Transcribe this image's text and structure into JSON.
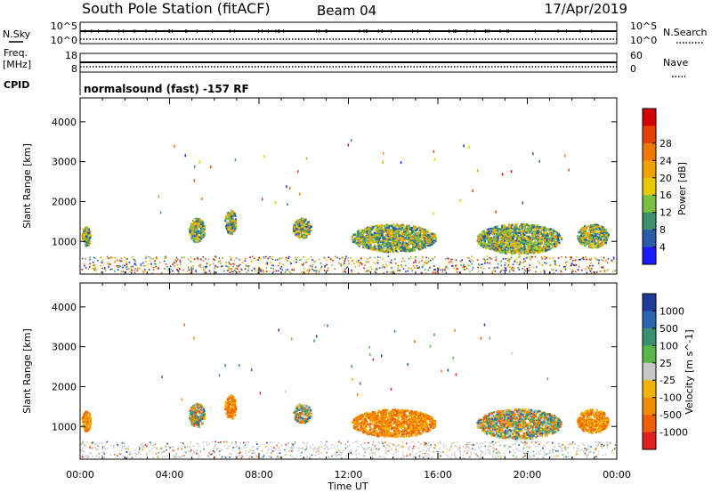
{
  "header": {
    "station": "South Pole Station (fitACF)",
    "beam": "Beam 04",
    "date": "17/Apr/2019"
  },
  "params": {
    "nsky_label": "N.Sky",
    "nsky_top": "10^5",
    "nsky_bottom": "10^0",
    "nsearch_label": "N.Search",
    "nsearch_top": "10^5",
    "nsearch_bottom": "10^0",
    "freq_label_line1": "Freq.",
    "freq_label_line2": "[MHz]",
    "freq_top": "18",
    "freq_bottom": "8",
    "nave_top": "60",
    "nave_bottom": "0",
    "nave_label": "Nave",
    "cpid_label": "CPID",
    "cpid_text": "normalsound (fast) -157 RF"
  },
  "chart_data": [
    {
      "type": "heatmap",
      "name": "power",
      "ylabel": "Slant Range [km]",
      "xlabel": "",
      "xlim": [
        0,
        24
      ],
      "ylim": [
        180,
        4600
      ],
      "yticks": [
        "1000",
        "2000",
        "3000",
        "4000"
      ],
      "colorbar_label": "Power [dB]",
      "colorbar_ticks": [
        "4",
        "8",
        "12",
        "16",
        "20",
        "24",
        "28"
      ],
      "colors": [
        "#1a1aff",
        "#2a5aa8",
        "#3f8f6e",
        "#79c043",
        "#e6c700",
        "#f0a000",
        "#f07800",
        "#e54200",
        "#d40000"
      ],
      "blobs": [
        {
          "t": 0.25,
          "r": 1150,
          "dt": 0.2,
          "dr": 250
        },
        {
          "t": 5.2,
          "r": 1300,
          "dt": 0.35,
          "dr": 300
        },
        {
          "t": 6.7,
          "r": 1500,
          "dt": 0.25,
          "dr": 300
        },
        {
          "t": 9.9,
          "r": 1350,
          "dt": 0.4,
          "dr": 250
        },
        {
          "t": 14.0,
          "r": 1100,
          "dt": 1.9,
          "dr": 350
        },
        {
          "t": 19.6,
          "r": 1080,
          "dt": 1.9,
          "dr": 380
        },
        {
          "t": 22.9,
          "r": 1150,
          "dt": 0.7,
          "dr": 300
        }
      ]
    },
    {
      "type": "heatmap",
      "name": "velocity",
      "ylabel": "Slant Range [km]",
      "xlabel": "Time UT",
      "xlim": [
        0,
        24
      ],
      "ylim": [
        180,
        4600
      ],
      "xticks": [
        "00:00",
        "04:00",
        "08:00",
        "12:00",
        "16:00",
        "20:00",
        "00:00"
      ],
      "yticks": [
        "1000",
        "2000",
        "3000",
        "4000"
      ],
      "colorbar_label": "Velocity [m s^-1]",
      "colorbar_ticks": [
        "1000",
        "500",
        "100",
        "25",
        "-25",
        "-100",
        "-500",
        "-1000"
      ],
      "colors": [
        "#1e3c9c",
        "#2a65b0",
        "#3a8f70",
        "#5ab84a",
        "#c8c8c8",
        "#f0b400",
        "#f08a00",
        "#f06000",
        "#e52020"
      ],
      "blobs": [
        {
          "t": 0.25,
          "r": 1150,
          "dt": 0.2,
          "dr": 250
        },
        {
          "t": 5.2,
          "r": 1300,
          "dt": 0.35,
          "dr": 300
        },
        {
          "t": 6.7,
          "r": 1500,
          "dt": 0.25,
          "dr": 300
        },
        {
          "t": 9.9,
          "r": 1350,
          "dt": 0.4,
          "dr": 250
        },
        {
          "t": 14.0,
          "r": 1100,
          "dt": 1.9,
          "dr": 350
        },
        {
          "t": 19.6,
          "r": 1080,
          "dt": 1.9,
          "dr": 380
        },
        {
          "t": 22.9,
          "r": 1150,
          "dt": 0.7,
          "dr": 300
        }
      ]
    }
  ]
}
